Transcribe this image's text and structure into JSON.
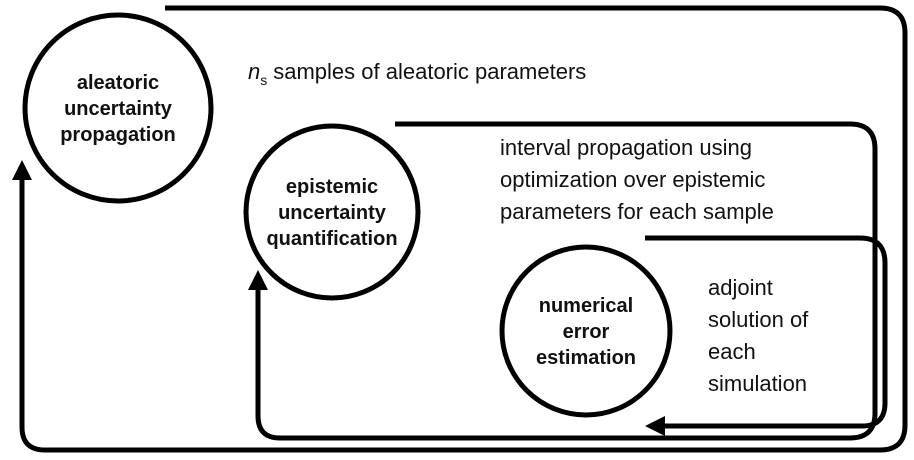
{
  "nodes": [
    {
      "lines": [
        "aleatoric",
        "uncertainty",
        "propagation"
      ]
    },
    {
      "lines": [
        "epistemic",
        "uncertainty",
        "quantification"
      ]
    },
    {
      "lines": [
        "numerical",
        "error",
        "estimation"
      ]
    }
  ],
  "edges": [
    {
      "variable": "n",
      "subscript": "s",
      "text": "samples of aleatoric parameters"
    },
    {
      "lines": [
        "interval propagation using",
        "optimization over epistemic",
        "parameters for each sample"
      ]
    },
    {
      "lines": [
        "adjoint",
        "solution of",
        "each",
        "simulation"
      ]
    }
  ]
}
